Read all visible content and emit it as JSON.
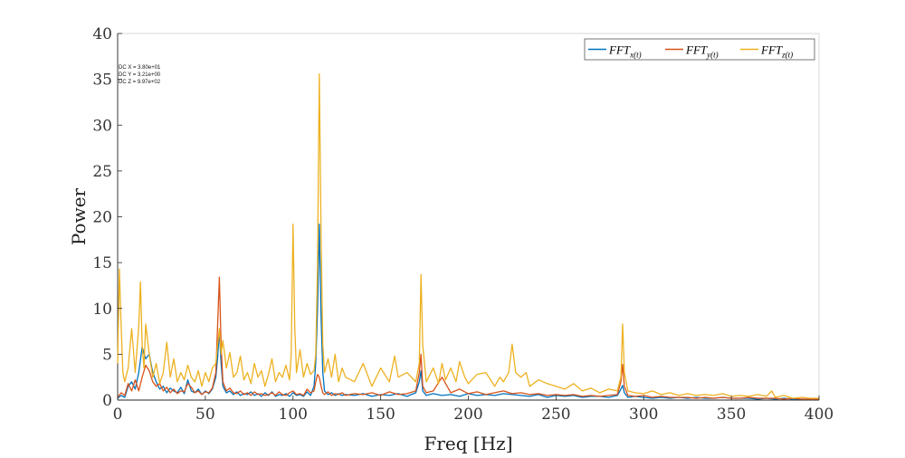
{
  "chart_data": {
    "type": "line",
    "xlabel": "Freq [Hz]",
    "ylabel": "Power",
    "xlim": [
      0,
      400
    ],
    "ylim": [
      0,
      40
    ],
    "xticks": [
      0,
      50,
      100,
      150,
      200,
      250,
      300,
      350,
      400
    ],
    "yticks": [
      0,
      5,
      10,
      15,
      20,
      25,
      30,
      35,
      40
    ],
    "grid": false,
    "legend_position": "top-right",
    "annotations": [
      "DC X = 3.80e+01",
      "DC Y = 3.21e+00",
      "DC Z = 9.97e+02"
    ],
    "series": [
      {
        "name": "FFT_x(t)",
        "legend_base": "FFT",
        "legend_sub": "x(t)",
        "color": "#0072BD",
        "x": [
          0,
          2,
          4,
          6,
          8,
          10,
          12,
          14,
          16,
          18,
          20,
          22,
          24,
          26,
          28,
          30,
          32,
          34,
          36,
          38,
          40,
          42,
          44,
          46,
          48,
          50,
          52,
          54,
          56,
          57,
          58,
          59,
          60,
          62,
          64,
          66,
          68,
          70,
          72,
          74,
          76,
          78,
          80,
          82,
          84,
          86,
          88,
          90,
          92,
          94,
          96,
          98,
          100,
          102,
          104,
          106,
          108,
          110,
          112,
          113,
          114,
          115,
          116,
          117,
          118,
          120,
          122,
          124,
          126,
          128,
          130,
          135,
          140,
          145,
          150,
          155,
          160,
          165,
          170,
          172,
          173,
          174,
          176,
          180,
          185,
          190,
          195,
          200,
          205,
          210,
          215,
          220,
          225,
          230,
          235,
          240,
          245,
          250,
          255,
          260,
          265,
          270,
          275,
          280,
          285,
          287,
          288,
          289,
          291,
          295,
          300,
          305,
          310,
          315,
          320,
          325,
          330,
          335,
          340,
          345,
          350,
          355,
          360,
          365,
          370,
          375,
          380,
          385,
          390,
          395,
          400
        ],
        "values": [
          0.2,
          0.5,
          0.3,
          1.5,
          2.0,
          1.2,
          3.0,
          5.8,
          4.5,
          5.0,
          3.0,
          2.0,
          1.2,
          1.5,
          0.8,
          1.3,
          1.0,
          0.8,
          1.4,
          0.7,
          2.2,
          1.0,
          0.8,
          1.2,
          0.6,
          1.0,
          0.7,
          1.2,
          2.5,
          4.5,
          7.6,
          4.0,
          1.5,
          0.8,
          1.0,
          0.6,
          0.9,
          0.5,
          0.7,
          0.6,
          0.9,
          0.5,
          0.7,
          0.4,
          0.8,
          0.5,
          0.9,
          0.4,
          0.6,
          0.5,
          0.7,
          0.4,
          0.8,
          0.5,
          0.6,
          0.4,
          0.9,
          0.5,
          1.5,
          4.0,
          10.0,
          19.2,
          9.0,
          3.0,
          1.0,
          0.6,
          0.8,
          0.5,
          0.7,
          0.5,
          0.6,
          0.5,
          0.7,
          0.4,
          0.6,
          0.5,
          0.7,
          0.4,
          0.8,
          2.0,
          3.2,
          1.0,
          0.5,
          0.7,
          0.5,
          0.6,
          0.4,
          0.7,
          0.5,
          0.6,
          0.5,
          0.7,
          0.6,
          0.5,
          0.4,
          0.6,
          0.3,
          0.5,
          0.4,
          0.5,
          0.3,
          0.4,
          0.4,
          0.3,
          0.5,
          1.2,
          1.6,
          0.8,
          0.3,
          0.4,
          0.3,
          0.2,
          0.3,
          0.2,
          0.3,
          0.2,
          0.3,
          0.2,
          0.2,
          0.3,
          0.2,
          0.2,
          0.2,
          0.1,
          0.2,
          0.1,
          0.2,
          0.1,
          0.1,
          0.1,
          0.1
        ]
      },
      {
        "name": "FFT_y(t)",
        "legend_base": "FFT",
        "legend_sub": "y(t)",
        "color": "#D95319",
        "x": [
          0,
          2,
          4,
          6,
          8,
          10,
          12,
          14,
          16,
          18,
          20,
          22,
          24,
          26,
          28,
          30,
          32,
          34,
          36,
          38,
          40,
          42,
          44,
          46,
          48,
          50,
          52,
          54,
          56,
          57,
          58,
          59,
          60,
          62,
          64,
          66,
          68,
          70,
          72,
          74,
          76,
          78,
          80,
          82,
          84,
          86,
          88,
          90,
          92,
          94,
          96,
          98,
          100,
          102,
          104,
          106,
          108,
          110,
          112,
          113,
          114,
          115,
          116,
          117,
          118,
          120,
          122,
          124,
          126,
          128,
          130,
          135,
          140,
          145,
          150,
          155,
          160,
          165,
          170,
          172,
          173,
          174,
          176,
          180,
          185,
          190,
          195,
          200,
          205,
          210,
          215,
          220,
          225,
          230,
          235,
          240,
          245,
          250,
          255,
          260,
          265,
          270,
          275,
          280,
          285,
          287,
          288,
          289,
          291,
          295,
          300,
          305,
          310,
          315,
          320,
          325,
          330,
          335,
          340,
          345,
          350,
          355,
          360,
          365,
          370,
          375,
          380,
          385,
          390,
          395,
          400
        ],
        "values": [
          0.3,
          0.8,
          0.5,
          1.8,
          1.0,
          2.2,
          1.0,
          2.5,
          3.8,
          3.2,
          2.0,
          1.5,
          1.8,
          1.0,
          1.4,
          0.8,
          1.2,
          0.7,
          1.0,
          0.9,
          1.8,
          1.4,
          0.8,
          1.0,
          0.6,
          0.9,
          0.8,
          1.3,
          3.0,
          8.0,
          13.4,
          6.0,
          2.0,
          1.0,
          1.3,
          0.8,
          0.7,
          1.0,
          0.6,
          0.8,
          0.5,
          0.9,
          0.6,
          0.7,
          0.5,
          0.6,
          0.8,
          0.5,
          0.9,
          0.6,
          0.5,
          0.8,
          1.0,
          0.6,
          0.7,
          0.5,
          1.2,
          0.8,
          1.0,
          2.0,
          2.8,
          2.5,
          1.5,
          0.8,
          0.6,
          0.9,
          0.5,
          0.7,
          0.6,
          0.8,
          0.5,
          0.7,
          0.6,
          0.8,
          0.5,
          0.9,
          0.6,
          0.7,
          1.0,
          3.0,
          5.0,
          1.5,
          0.8,
          1.0,
          2.5,
          0.8,
          1.2,
          0.7,
          0.9,
          0.6,
          0.8,
          1.0,
          0.7,
          0.8,
          0.6,
          0.7,
          0.5,
          0.6,
          0.5,
          0.6,
          0.4,
          0.5,
          0.4,
          0.5,
          0.6,
          2.0,
          3.9,
          1.5,
          0.5,
          0.4,
          0.5,
          0.3,
          0.4,
          0.3,
          0.3,
          0.3,
          0.2,
          0.3,
          0.2,
          0.3,
          0.2,
          0.2,
          0.3,
          0.2,
          0.2,
          0.2,
          0.1,
          0.2,
          0.1,
          0.1,
          0.1
        ]
      },
      {
        "name": "FFT_z(t)",
        "legend_base": "FFT",
        "legend_sub": "z(t)",
        "color": "#EDB120",
        "x": [
          0,
          1,
          2,
          3,
          4,
          6,
          8,
          10,
          12,
          13,
          14,
          15,
          16,
          18,
          20,
          22,
          24,
          26,
          28,
          30,
          32,
          34,
          36,
          38,
          40,
          42,
          44,
          46,
          48,
          50,
          52,
          54,
          56,
          57,
          58,
          59,
          60,
          62,
          64,
          66,
          68,
          70,
          72,
          74,
          76,
          78,
          80,
          82,
          84,
          86,
          88,
          90,
          92,
          94,
          96,
          98,
          99,
          100,
          101,
          102,
          104,
          106,
          108,
          110,
          112,
          113,
          114,
          115,
          116,
          117,
          118,
          120,
          122,
          124,
          126,
          128,
          130,
          135,
          140,
          145,
          150,
          155,
          158,
          160,
          165,
          170,
          172,
          173,
          174,
          176,
          180,
          183,
          185,
          187,
          190,
          193,
          195,
          198,
          200,
          205,
          210,
          215,
          218,
          220,
          223,
          225,
          227,
          230,
          233,
          235,
          240,
          245,
          250,
          255,
          260,
          265,
          270,
          275,
          280,
          285,
          287,
          288,
          289,
          291,
          295,
          300,
          305,
          310,
          315,
          320,
          325,
          330,
          335,
          340,
          345,
          350,
          355,
          360,
          365,
          370,
          373,
          375,
          380,
          385,
          390,
          395,
          400
        ],
        "values": [
          4.0,
          14.3,
          8.0,
          3.0,
          2.0,
          3.5,
          7.8,
          3.0,
          8.0,
          12.9,
          6.0,
          3.5,
          8.3,
          5.0,
          2.5,
          4.0,
          1.8,
          3.0,
          6.3,
          2.5,
          4.5,
          2.0,
          3.0,
          2.2,
          3.8,
          2.5,
          2.0,
          3.2,
          1.5,
          3.0,
          2.0,
          3.5,
          4.0,
          6.0,
          7.8,
          5.0,
          6.5,
          3.5,
          5.2,
          2.5,
          3.0,
          4.8,
          2.2,
          3.0,
          1.8,
          4.0,
          2.5,
          3.2,
          1.5,
          2.8,
          4.5,
          2.0,
          3.0,
          2.5,
          3.8,
          2.2,
          5.0,
          19.2,
          8.0,
          3.0,
          5.5,
          2.5,
          4.0,
          2.8,
          3.2,
          5.0,
          15.0,
          35.6,
          18.0,
          6.0,
          3.0,
          4.5,
          2.5,
          5.0,
          2.0,
          3.5,
          2.5,
          2.0,
          4.0,
          1.5,
          3.5,
          2.0,
          4.8,
          2.5,
          3.0,
          2.0,
          4.0,
          13.7,
          6.0,
          2.0,
          3.5,
          1.8,
          4.0,
          2.2,
          3.5,
          2.0,
          4.2,
          2.5,
          1.8,
          2.8,
          3.0,
          1.5,
          2.5,
          2.0,
          3.0,
          6.1,
          3.0,
          2.5,
          3.0,
          1.5,
          2.2,
          1.8,
          1.5,
          1.2,
          1.8,
          1.0,
          1.3,
          0.8,
          1.2,
          1.0,
          2.5,
          8.3,
          3.0,
          1.0,
          0.8,
          0.7,
          1.0,
          0.6,
          0.8,
          0.5,
          0.7,
          0.5,
          0.6,
          0.5,
          0.7,
          0.4,
          0.5,
          0.4,
          0.6,
          0.4,
          1.0,
          0.3,
          0.5,
          0.2,
          0.3,
          0.2,
          0.2
        ]
      }
    ]
  }
}
